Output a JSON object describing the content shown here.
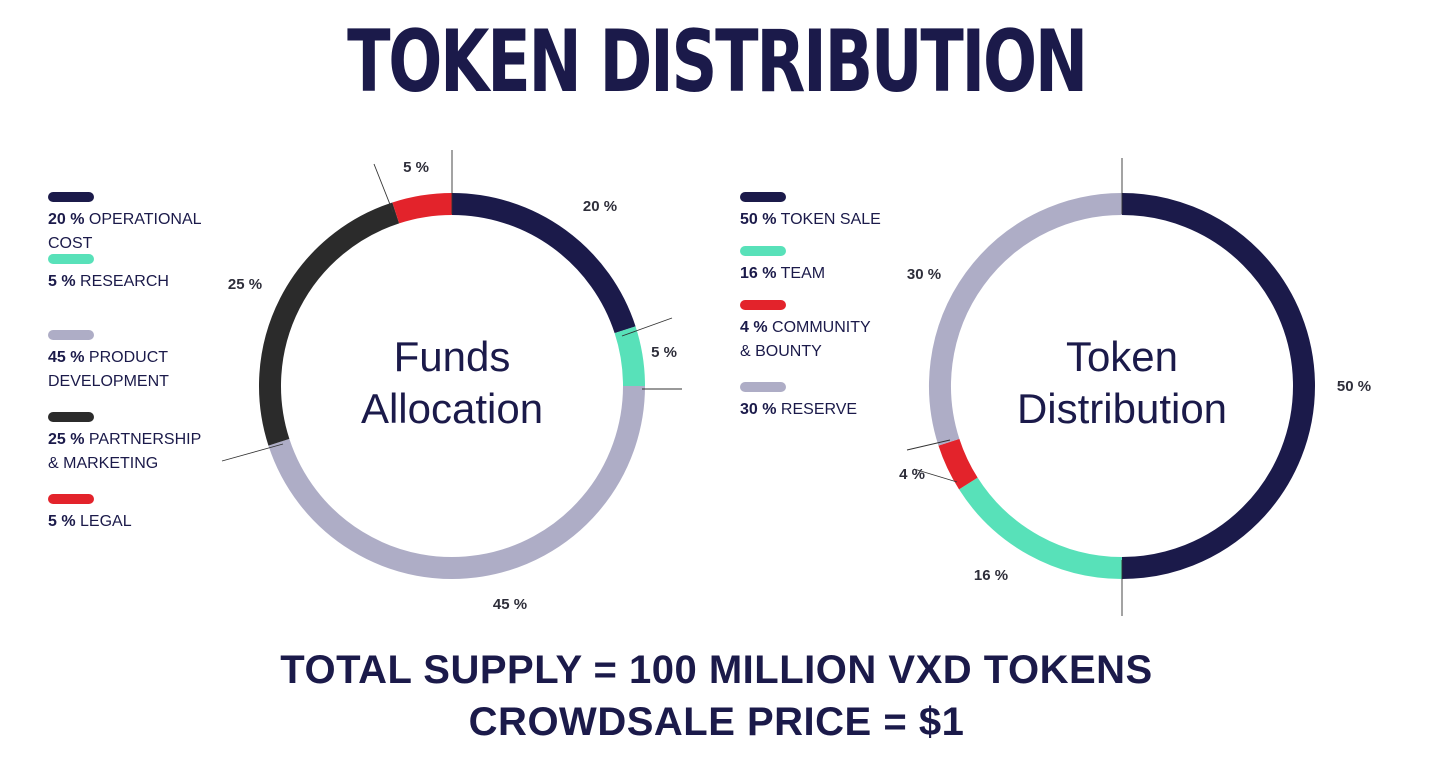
{
  "title": "TOKEN DISTRIBUTION",
  "colors": {
    "navy": "#1b1a4a",
    "mint": "#58e1b9",
    "red": "#e3232b",
    "gray": "#aeadc6",
    "charcoal": "#2b2b2b"
  },
  "chart_data": [
    {
      "type": "pie",
      "variant": "donut",
      "center_label": [
        "Funds",
        "Allocation"
      ],
      "slices": [
        {
          "label": "20 %",
          "value": 20,
          "color": "#1b1a4a"
        },
        {
          "label": "5 %",
          "value": 5,
          "color": "#58e1b9"
        },
        {
          "label": "45 %",
          "value": 45,
          "color": "#aeadc6"
        },
        {
          "label": "25 %",
          "value": 25,
          "color": "#2b2b2b"
        },
        {
          "label": "5 %",
          "value": 5,
          "color": "#e3232b"
        }
      ],
      "legend": [
        {
          "pct": "20 %",
          "name": "OPERATIONAL\nCOST",
          "color": "#1b1a4a"
        },
        {
          "pct": "5 %",
          "name": "RESEARCH",
          "color": "#58e1b9"
        },
        {
          "pct": "45 %",
          "name": "PRODUCT\nDEVELOPMENT",
          "color": "#aeadc6"
        },
        {
          "pct": "25 %",
          "name": "PARTNERSHIP\n& MARKETING",
          "color": "#2b2b2b"
        },
        {
          "pct": "5 %",
          "name": "LEGAL",
          "color": "#e3232b"
        }
      ]
    },
    {
      "type": "pie",
      "variant": "donut",
      "center_label": [
        "Token",
        "Distribution"
      ],
      "slices": [
        {
          "label": "50 %",
          "value": 50,
          "color": "#1b1a4a"
        },
        {
          "label": "16 %",
          "value": 16,
          "color": "#58e1b9"
        },
        {
          "label": "4 %",
          "value": 4,
          "color": "#e3232b"
        },
        {
          "label": "30 %",
          "value": 30,
          "color": "#aeadc6"
        }
      ],
      "legend": [
        {
          "pct": "50 %",
          "name": "TOKEN SALE",
          "color": "#1b1a4a"
        },
        {
          "pct": "16 %",
          "name": "TEAM",
          "color": "#58e1b9"
        },
        {
          "pct": "4 %",
          "name": "COMMUNITY\n& BOUNTY",
          "color": "#e3232b"
        },
        {
          "pct": "30 %",
          "name": "RESERVE",
          "color": "#aeadc6"
        }
      ]
    }
  ],
  "footer": {
    "line1": "TOTAL SUPPLY = 100 MILLION VXD TOKENS",
    "line2": "CROWDSALE PRICE = $1"
  }
}
